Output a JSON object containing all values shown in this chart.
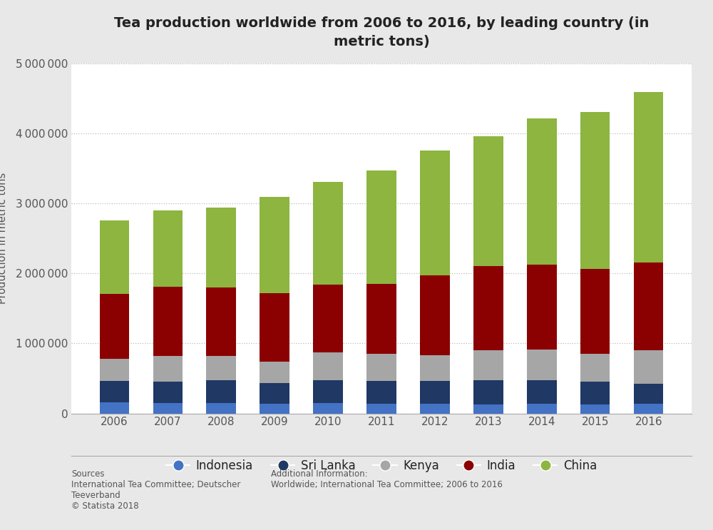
{
  "title": "Tea production worldwide from 2006 to 2016, by leading country (in\nmetric tons)",
  "ylabel": "Production in metric tons",
  "years": [
    2006,
    2007,
    2008,
    2009,
    2010,
    2011,
    2012,
    2013,
    2014,
    2015,
    2016
  ],
  "indonesia": [
    157000,
    150000,
    153000,
    140000,
    144000,
    141000,
    139000,
    130000,
    135000,
    126000,
    135000
  ],
  "srilanka": [
    310000,
    305000,
    319000,
    290000,
    330000,
    328000,
    328000,
    340000,
    338000,
    328000,
    292000
  ],
  "kenya": [
    310000,
    370000,
    345000,
    314000,
    399000,
    379000,
    369000,
    432000,
    445000,
    399000,
    473000
  ],
  "india": [
    928000,
    981000,
    987000,
    979000,
    966000,
    1000000,
    1135000,
    1207000,
    1208000,
    1208000,
    1252000
  ],
  "china": [
    1051000,
    1095000,
    1143000,
    1375000,
    1467000,
    1620000,
    1789000,
    1856000,
    2095000,
    2247000,
    2439000
  ],
  "colors": {
    "indonesia": "#4472c4",
    "srilanka": "#1f3864",
    "kenya": "#a6a6a6",
    "india": "#8b0000",
    "china": "#8db540"
  },
  "ylim": [
    0,
    5000000
  ],
  "yticks": [
    0,
    1000000,
    2000000,
    3000000,
    4000000,
    5000000
  ],
  "figure_bg": "#e8e8e8",
  "plot_bg": "#ffffff",
  "title_fontsize": 14,
  "sources_text": "Sources\nInternational Tea Committee; Deutscher\nTeeverband\n© Statista 2018",
  "additional_text": "Additional Information:\nWorldwide; International Tea Committee; 2006 to 2016"
}
